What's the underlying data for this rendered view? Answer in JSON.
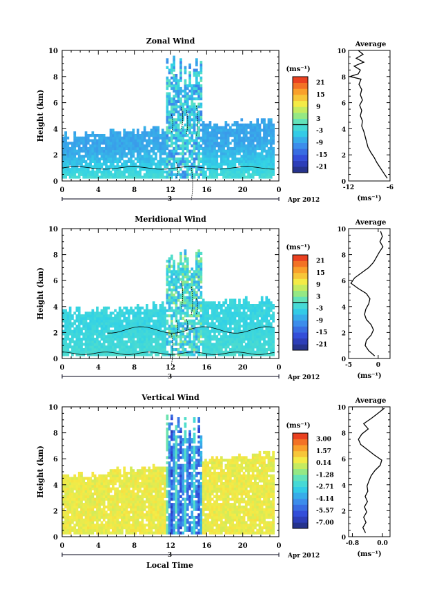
{
  "figure": {
    "xlabel_bottom": "Local Time",
    "date_label": "Apr 2012",
    "day_label": "3"
  },
  "chart_data": [
    {
      "type": "heatmap",
      "title": "Zonal Wind",
      "xlabel": "",
      "ylabel": "Height (km)",
      "xlim": [
        0,
        24
      ],
      "ylim": [
        0,
        10
      ],
      "x_ticks": [
        "0",
        "4",
        "8",
        "12",
        "16",
        "20",
        "0"
      ],
      "y_ticks": [
        "0",
        "2",
        "4",
        "6",
        "8",
        "10"
      ],
      "colorbar": {
        "unit": "(ms⁻¹)",
        "ticks": [
          "21",
          "15",
          "9",
          "3",
          "-3",
          "-9",
          "-15",
          "-21"
        ],
        "range": [
          -24,
          24
        ],
        "zero_line": 0
      },
      "field": {
        "base": -8,
        "near_surface": -1,
        "top_km_left": 3.3,
        "top_km_right": 4.6,
        "conv_start": 11.5,
        "conv_end": 15.5,
        "conv_top": 9.5
      },
      "profile": {
        "title": "Average",
        "xlabel": "(ms⁻¹)",
        "xlim": [
          -12,
          -6
        ],
        "x_ticks": [
          "-12",
          "-6"
        ],
        "y_ticks": [
          "0",
          "2",
          "4",
          "6",
          "8",
          "10"
        ],
        "height_km": [
          0.2,
          0.6,
          1.0,
          1.4,
          1.8,
          2.2,
          2.6,
          3.0,
          3.4,
          3.8,
          4.2,
          4.6,
          5.0,
          5.4,
          5.8,
          6.2,
          6.6,
          7.0,
          7.4,
          7.8,
          8.0,
          8.2,
          8.5,
          8.8,
          9.1,
          9.4,
          9.7,
          10.0
        ],
        "values": [
          -6.4,
          -6.9,
          -7.4,
          -7.9,
          -8.3,
          -8.8,
          -9.2,
          -9.4,
          -9.6,
          -9.8,
          -10.1,
          -10.0,
          -10.3,
          -10.1,
          -10.4,
          -10.0,
          -10.3,
          -10.1,
          -10.5,
          -10.2,
          -11.8,
          -10.6,
          -10.3,
          -11.2,
          -9.8,
          -10.9,
          -9.9,
          -10.6
        ]
      }
    },
    {
      "type": "heatmap",
      "title": "Meridional Wind",
      "xlabel": "",
      "ylabel": "Height (km)",
      "xlim": [
        0,
        24
      ],
      "ylim": [
        0,
        10
      ],
      "x_ticks": [
        "0",
        "4",
        "8",
        "12",
        "16",
        "20",
        "0"
      ],
      "y_ticks": [
        "0",
        "2",
        "4",
        "6",
        "8",
        "10"
      ],
      "colorbar": {
        "unit": "(ms⁻¹)",
        "ticks": [
          "21",
          "15",
          "9",
          "3",
          "-3",
          "-9",
          "-15",
          "-21"
        ],
        "range": [
          -24,
          24
        ],
        "zero_line": 0
      },
      "field": {
        "base": -3,
        "near_surface": -1,
        "top_km_left": 3.5,
        "top_km_right": 4.5,
        "conv_start": 11.5,
        "conv_end": 15.5,
        "conv_top": 8.5
      },
      "profile": {
        "title": "Average",
        "xlabel": "(ms⁻¹)",
        "xlim": [
          -5,
          2
        ],
        "x_ticks": [
          "-5",
          "0"
        ],
        "y_ticks": [
          "0",
          "2",
          "4",
          "6",
          "8",
          "10"
        ],
        "height_km": [
          0.2,
          0.6,
          1.0,
          1.4,
          1.8,
          2.2,
          2.6,
          3.0,
          3.4,
          3.8,
          4.2,
          4.6,
          5.0,
          5.4,
          5.8,
          6.2,
          6.6,
          7.0,
          7.4,
          7.8,
          8.2,
          8.6,
          9.0,
          9.4,
          9.8
        ],
        "values": [
          -0.6,
          -1.6,
          -2.2,
          -2.0,
          -1.2,
          -0.8,
          -1.2,
          -2.0,
          -2.3,
          -2.1,
          -1.6,
          -1.4,
          -2.0,
          -3.4,
          -4.6,
          -4.0,
          -2.8,
          -1.6,
          -0.8,
          -0.3,
          0.2,
          0.8,
          0.3,
          0.7,
          0.4
        ]
      }
    },
    {
      "type": "heatmap",
      "title": "Vertical Wind",
      "xlabel": "Local Time",
      "ylabel": "Height (km)",
      "xlim": [
        0,
        24
      ],
      "ylim": [
        0,
        10
      ],
      "x_ticks": [
        "0",
        "4",
        "8",
        "12",
        "16",
        "20",
        "0"
      ],
      "y_ticks": [
        "0",
        "2",
        "4",
        "6",
        "8",
        "10"
      ],
      "colorbar": {
        "unit": "(ms⁻¹)",
        "ticks": [
          "3.00",
          "1.57",
          "0.14",
          "-1.28",
          "-2.71",
          "-4.14",
          "-5.57",
          "-7.00"
        ],
        "range": [
          -7.8,
          3.8
        ]
      },
      "field": {
        "base": 0.4,
        "near_surface": 0.4,
        "top_km_left": 4.5,
        "top_km_right": 6.4,
        "conv_start": 11.5,
        "conv_end": 15.5,
        "conv_top": 9.5
      },
      "profile": {
        "title": "Average",
        "xlabel": "(ms⁻¹)",
        "xlim": [
          -0.9,
          0.2
        ],
        "x_ticks": [
          "-0.8",
          "0.0"
        ],
        "y_ticks": [
          "0",
          "2",
          "4",
          "6",
          "8",
          "10"
        ],
        "height_km": [
          0.3,
          0.7,
          1.1,
          1.5,
          1.9,
          2.3,
          2.7,
          3.1,
          3.5,
          3.9,
          4.3,
          4.7,
          5.1,
          5.5,
          5.9,
          6.3,
          6.7,
          7.1,
          7.5,
          7.9,
          8.3,
          8.7,
          9.1,
          9.5,
          9.9
        ],
        "values": [
          -0.45,
          -0.52,
          -0.44,
          -0.5,
          -0.42,
          -0.48,
          -0.4,
          -0.46,
          -0.39,
          -0.41,
          -0.36,
          -0.3,
          -0.2,
          -0.06,
          -0.02,
          -0.22,
          -0.4,
          -0.58,
          -0.64,
          -0.55,
          -0.38,
          -0.5,
          -0.3,
          -0.12,
          0.05
        ]
      }
    }
  ]
}
